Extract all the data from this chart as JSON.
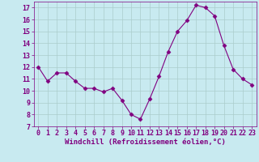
{
  "x": [
    0,
    1,
    2,
    3,
    4,
    5,
    6,
    7,
    8,
    9,
    10,
    11,
    12,
    13,
    14,
    15,
    16,
    17,
    18,
    19,
    20,
    21,
    22,
    23
  ],
  "y": [
    12.0,
    10.8,
    11.5,
    11.5,
    10.8,
    10.2,
    10.2,
    9.9,
    10.2,
    9.2,
    8.0,
    7.6,
    9.3,
    11.2,
    13.3,
    15.0,
    15.9,
    17.2,
    17.0,
    16.3,
    13.8,
    11.8,
    11.0,
    10.5
  ],
  "line_color": "#800080",
  "marker": "D",
  "marker_size": 2.5,
  "bg_color": "#c8eaf0",
  "grid_color": "#aacccc",
  "xlabel": "Windchill (Refroidissement éolien,°C)",
  "ylim": [
    7,
    17.5
  ],
  "xlim": [
    -0.5,
    23.5
  ],
  "yticks": [
    7,
    8,
    9,
    10,
    11,
    12,
    13,
    14,
    15,
    16,
    17
  ],
  "xticks": [
    0,
    1,
    2,
    3,
    4,
    5,
    6,
    7,
    8,
    9,
    10,
    11,
    12,
    13,
    14,
    15,
    16,
    17,
    18,
    19,
    20,
    21,
    22,
    23
  ],
  "tick_color": "#800080",
  "label_color": "#800080",
  "xlabel_fontsize": 6.5,
  "tick_fontsize": 6.0,
  "linewidth": 0.8
}
